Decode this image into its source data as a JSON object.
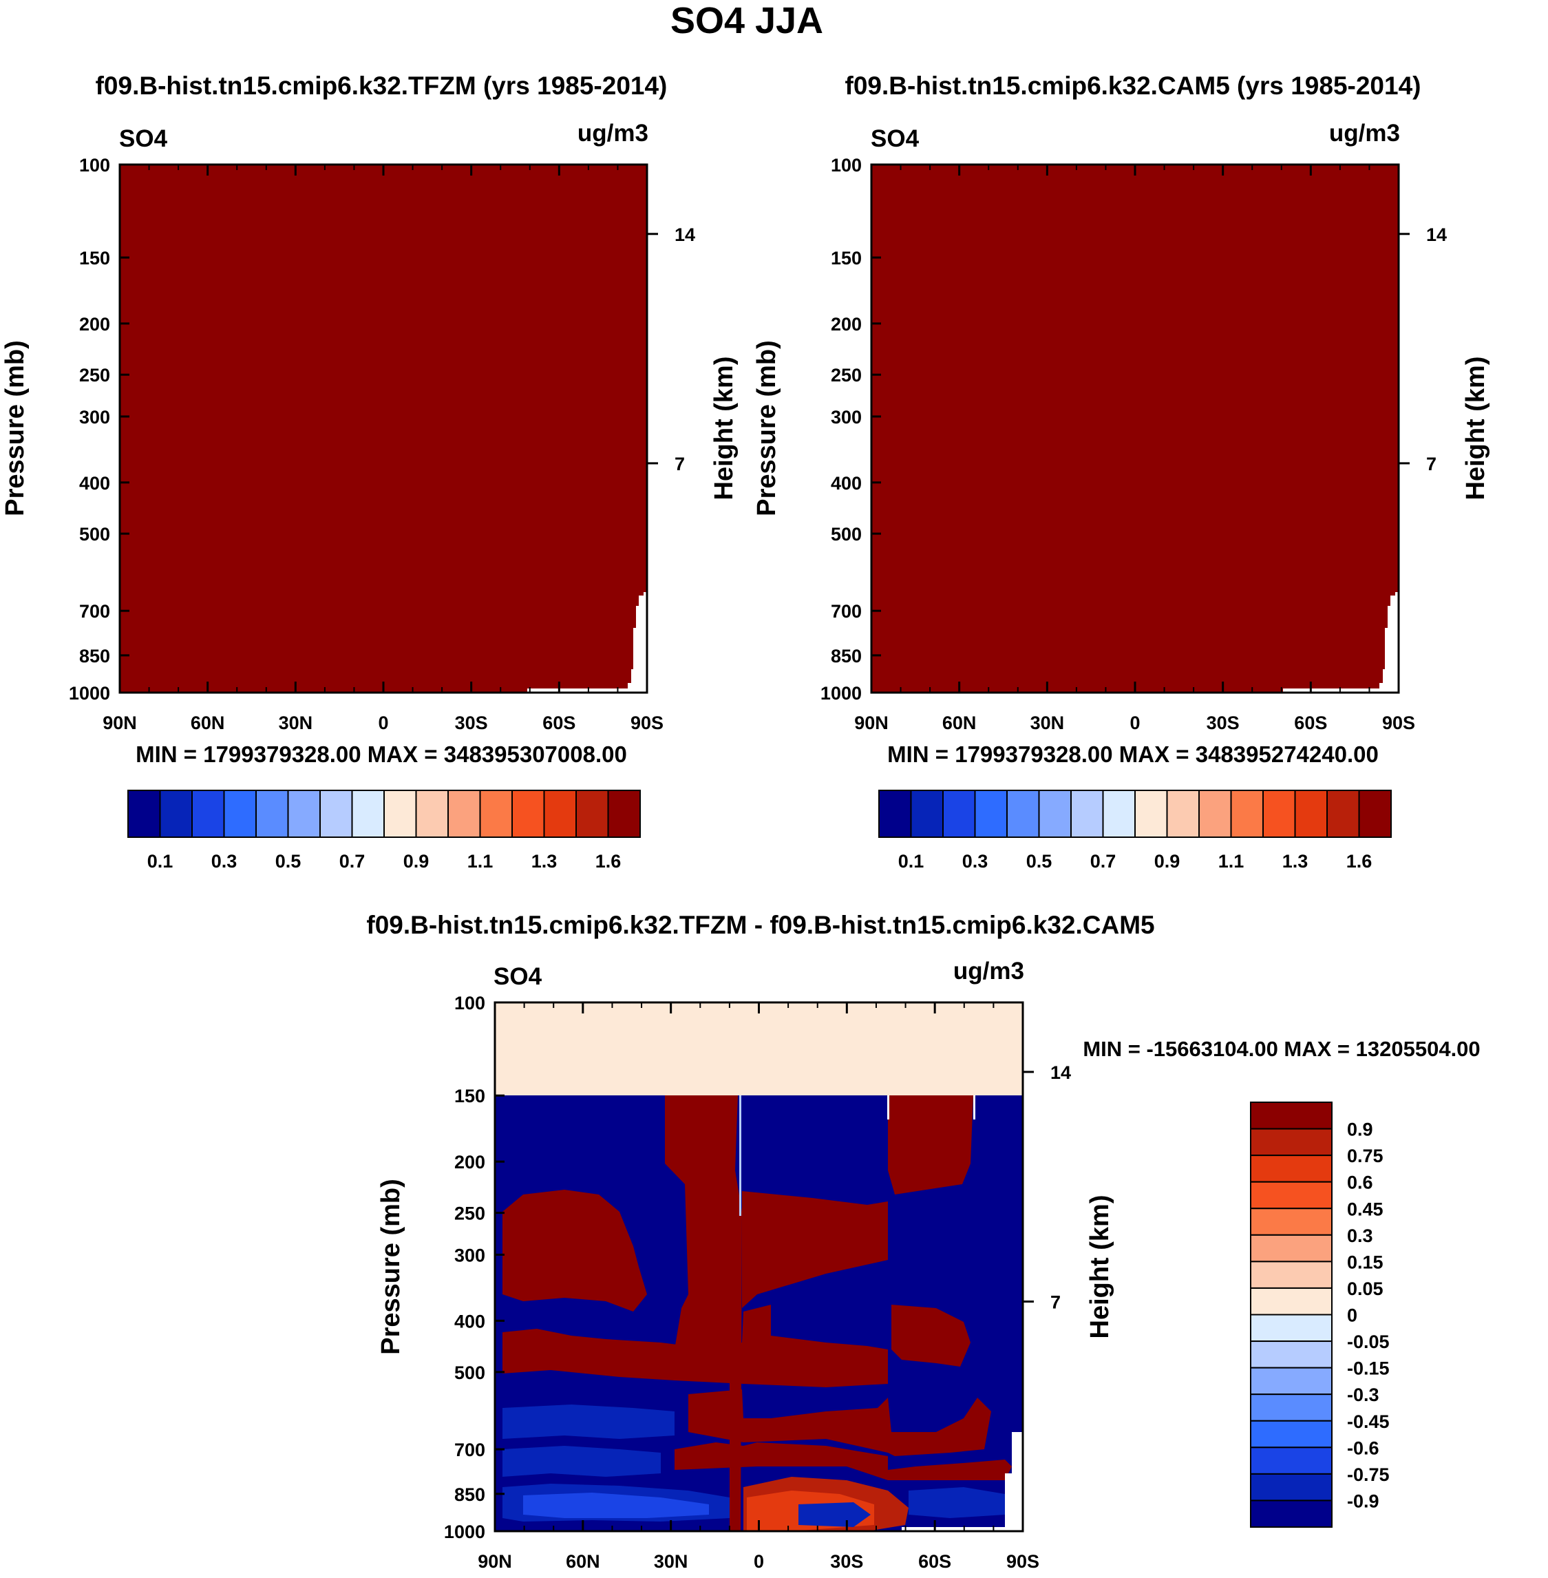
{
  "figure_title": "SO4 JJA",
  "colors": {
    "dark_red": "#8b0000",
    "dark_blue": "#00008b",
    "zero_band": "#fde9d7",
    "white": "#ffffff"
  },
  "chart_data": [
    {
      "type": "heatmap",
      "id": "panel-tfzm",
      "title": "f09.B-hist.tn15.cmip6.k32.TFZM (yrs 1985-2014)",
      "variable": "SO4",
      "units": "ug/m3",
      "ylabel": "Pressure (mb)",
      "y2label": "Height (km)",
      "x_ticks": [
        "90N",
        "60N",
        "30N",
        "0",
        "30S",
        "60S",
        "90S"
      ],
      "y_ticks": [
        100,
        150,
        200,
        250,
        300,
        400,
        500,
        700,
        850,
        1000
      ],
      "y2_ticks": [
        14,
        7
      ],
      "y_scale": "log",
      "xlim": [
        90,
        -90
      ],
      "ylim": [
        1000,
        100
      ],
      "field": "uniform maximum level (dark red) everywhere; missing near surface south of 60S",
      "stats": "MIN = 1799379328.00   MAX = 348395307008.00",
      "colorbar": {
        "levels": [
          "0.1",
          "0.3",
          "0.5",
          "0.7",
          "0.9",
          "1.1",
          "1.3",
          "1.6"
        ],
        "colors": [
          "#00008b",
          "#0624b8",
          "#1a44e6",
          "#2e6cff",
          "#5a8cff",
          "#86aaff",
          "#b6ccff",
          "#d9ebff",
          "#fde9d7",
          "#fccbb1",
          "#fba27e",
          "#fb7a47",
          "#f65220",
          "#e43a0f",
          "#b8200a",
          "#8b0000"
        ]
      }
    },
    {
      "type": "heatmap",
      "id": "panel-cam5",
      "title": "f09.B-hist.tn15.cmip6.k32.CAM5 (yrs 1985-2014)",
      "variable": "SO4",
      "units": "ug/m3",
      "ylabel": "Pressure (mb)",
      "y2label": "Height (km)",
      "x_ticks": [
        "90N",
        "60N",
        "30N",
        "0",
        "30S",
        "60S",
        "90S"
      ],
      "y_ticks": [
        100,
        150,
        200,
        250,
        300,
        400,
        500,
        700,
        850,
        1000
      ],
      "y2_ticks": [
        14,
        7
      ],
      "y_scale": "log",
      "xlim": [
        90,
        -90
      ],
      "ylim": [
        1000,
        100
      ],
      "field": "uniform maximum level (dark red) everywhere; missing near surface south of 60S",
      "stats": "MIN = 1799379328.00   MAX = 348395274240.00",
      "colorbar": {
        "levels": [
          "0.1",
          "0.3",
          "0.5",
          "0.7",
          "0.9",
          "1.1",
          "1.3",
          "1.6"
        ],
        "colors": [
          "#00008b",
          "#0624b8",
          "#1a44e6",
          "#2e6cff",
          "#5a8cff",
          "#86aaff",
          "#b6ccff",
          "#d9ebff",
          "#fde9d7",
          "#fccbb1",
          "#fba27e",
          "#fb7a47",
          "#f65220",
          "#e43a0f",
          "#b8200a",
          "#8b0000"
        ]
      }
    },
    {
      "type": "heatmap",
      "id": "panel-diff",
      "title": "f09.B-hist.tn15.cmip6.k32.TFZM - f09.B-hist.tn15.cmip6.k32.CAM5",
      "variable": "SO4",
      "units": "ug/m3",
      "ylabel": "Pressure (mb)",
      "y2label": "Height (km)",
      "x_ticks": [
        "90N",
        "60N",
        "30N",
        "0",
        "30S",
        "60S",
        "90S"
      ],
      "y_ticks": [
        100,
        150,
        200,
        250,
        300,
        400,
        500,
        700,
        850,
        1000
      ],
      "y2_ticks": [
        14,
        7
      ],
      "y_scale": "log",
      "xlim": [
        90,
        -90
      ],
      "ylim": [
        1000,
        100
      ],
      "field": "0 to +0.05 band above 150 mb; alternating saturated positive (dark red) and negative (dark blue) layers below 150 mb",
      "stats": "MIN = -15663104.00   MAX = 13205504.00",
      "colorbar": {
        "levels": [
          "0.9",
          "0.75",
          "0.6",
          "0.45",
          "0.3",
          "0.15",
          "0.05",
          "0",
          "-0.05",
          "-0.15",
          "-0.3",
          "-0.45",
          "-0.6",
          "-0.75",
          "-0.9"
        ],
        "colors": [
          "#8b0000",
          "#b8200a",
          "#e43a0f",
          "#f65220",
          "#fb7a47",
          "#fba27e",
          "#fccbb1",
          "#fde9d7",
          "#d9ebff",
          "#b6ccff",
          "#86aaff",
          "#5a8cff",
          "#2e6cff",
          "#1a44e6",
          "#0624b8",
          "#00008b"
        ]
      }
    }
  ]
}
